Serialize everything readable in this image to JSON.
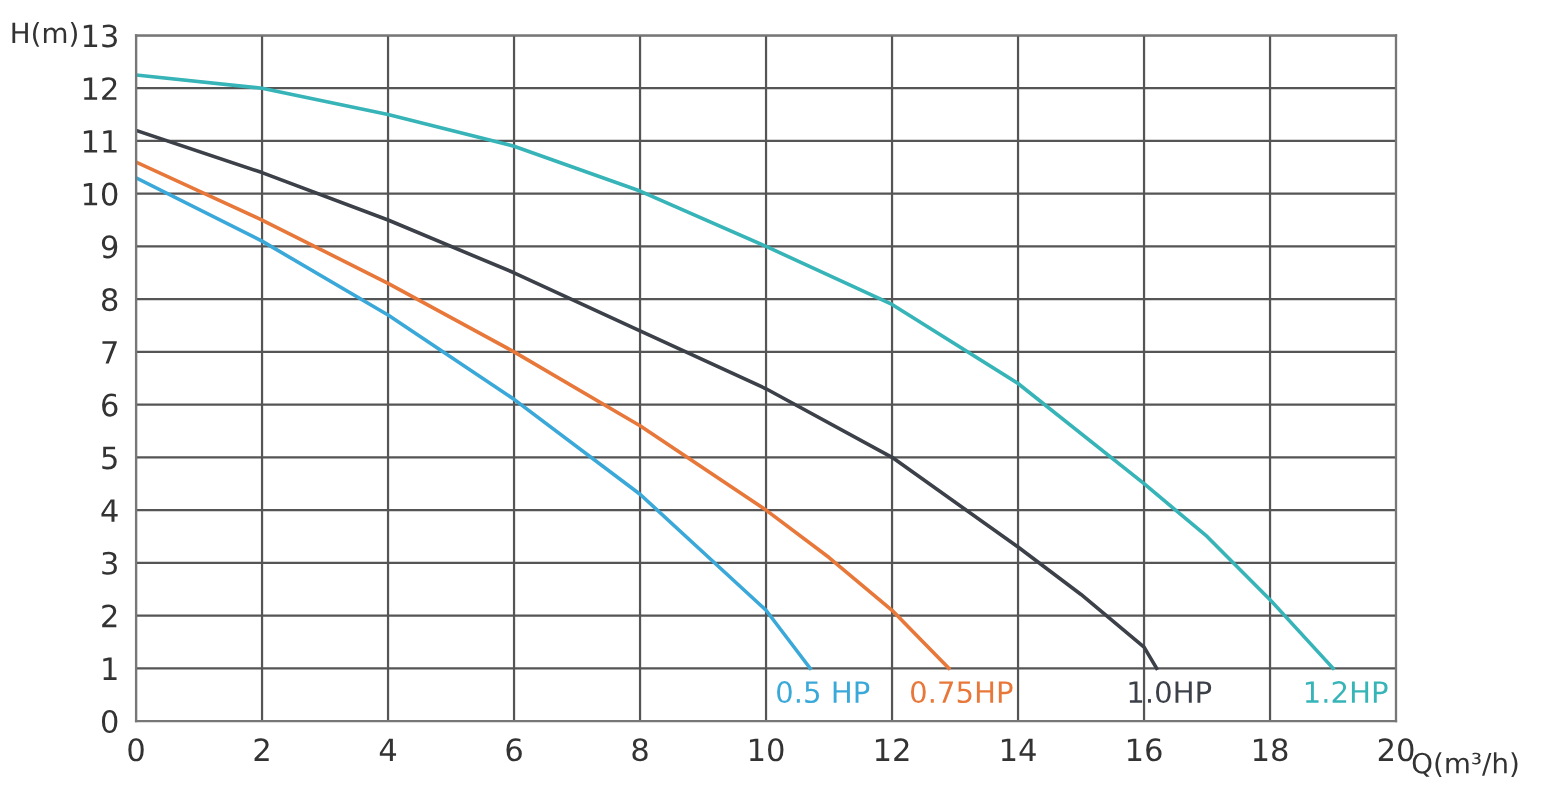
{
  "chart_data": {
    "type": "line",
    "xlabel": "Q(m³/h)",
    "ylabel": "H(m)",
    "xlim": [
      0,
      20
    ],
    "ylim": [
      0,
      13
    ],
    "xticks": [
      0,
      2,
      4,
      6,
      8,
      10,
      12,
      14,
      16,
      18,
      20
    ],
    "yticks": [
      0,
      1,
      2,
      3,
      4,
      5,
      6,
      7,
      8,
      9,
      10,
      11,
      12,
      13
    ],
    "grid": true,
    "legend": false,
    "marker": "none",
    "line_style": "solid",
    "series": [
      {
        "name": "0.5 HP",
        "color": "#3aa8d8",
        "x": [
          0,
          2,
          4,
          6,
          8,
          9,
          10,
          10.7
        ],
        "values": [
          10.3,
          9.1,
          7.7,
          6.1,
          4.3,
          3.2,
          2.1,
          1
        ]
      },
      {
        "name": "0.75HP",
        "color": "#e8773a",
        "x": [
          0,
          2,
          4,
          6,
          8,
          10,
          11,
          12,
          12.9
        ],
        "values": [
          10.6,
          9.5,
          8.3,
          7.0,
          5.6,
          4.0,
          3.1,
          2.1,
          1
        ]
      },
      {
        "name": "1.0HP",
        "color": "#3c4048",
        "x": [
          0,
          2,
          4,
          6,
          8,
          10,
          12,
          14,
          15,
          16,
          16.2
        ],
        "values": [
          11.2,
          10.4,
          9.5,
          8.5,
          7.4,
          6.3,
          5.0,
          3.3,
          2.4,
          1.4,
          1
        ]
      },
      {
        "name": "1.2HP",
        "color": "#36b4b8",
        "x": [
          0,
          2,
          4,
          6,
          8,
          10,
          12,
          14,
          16,
          17,
          18,
          19
        ],
        "values": [
          12.25,
          12.0,
          11.5,
          10.9,
          10.05,
          9.0,
          7.9,
          6.4,
          4.5,
          3.5,
          2.3,
          1
        ]
      }
    ]
  }
}
